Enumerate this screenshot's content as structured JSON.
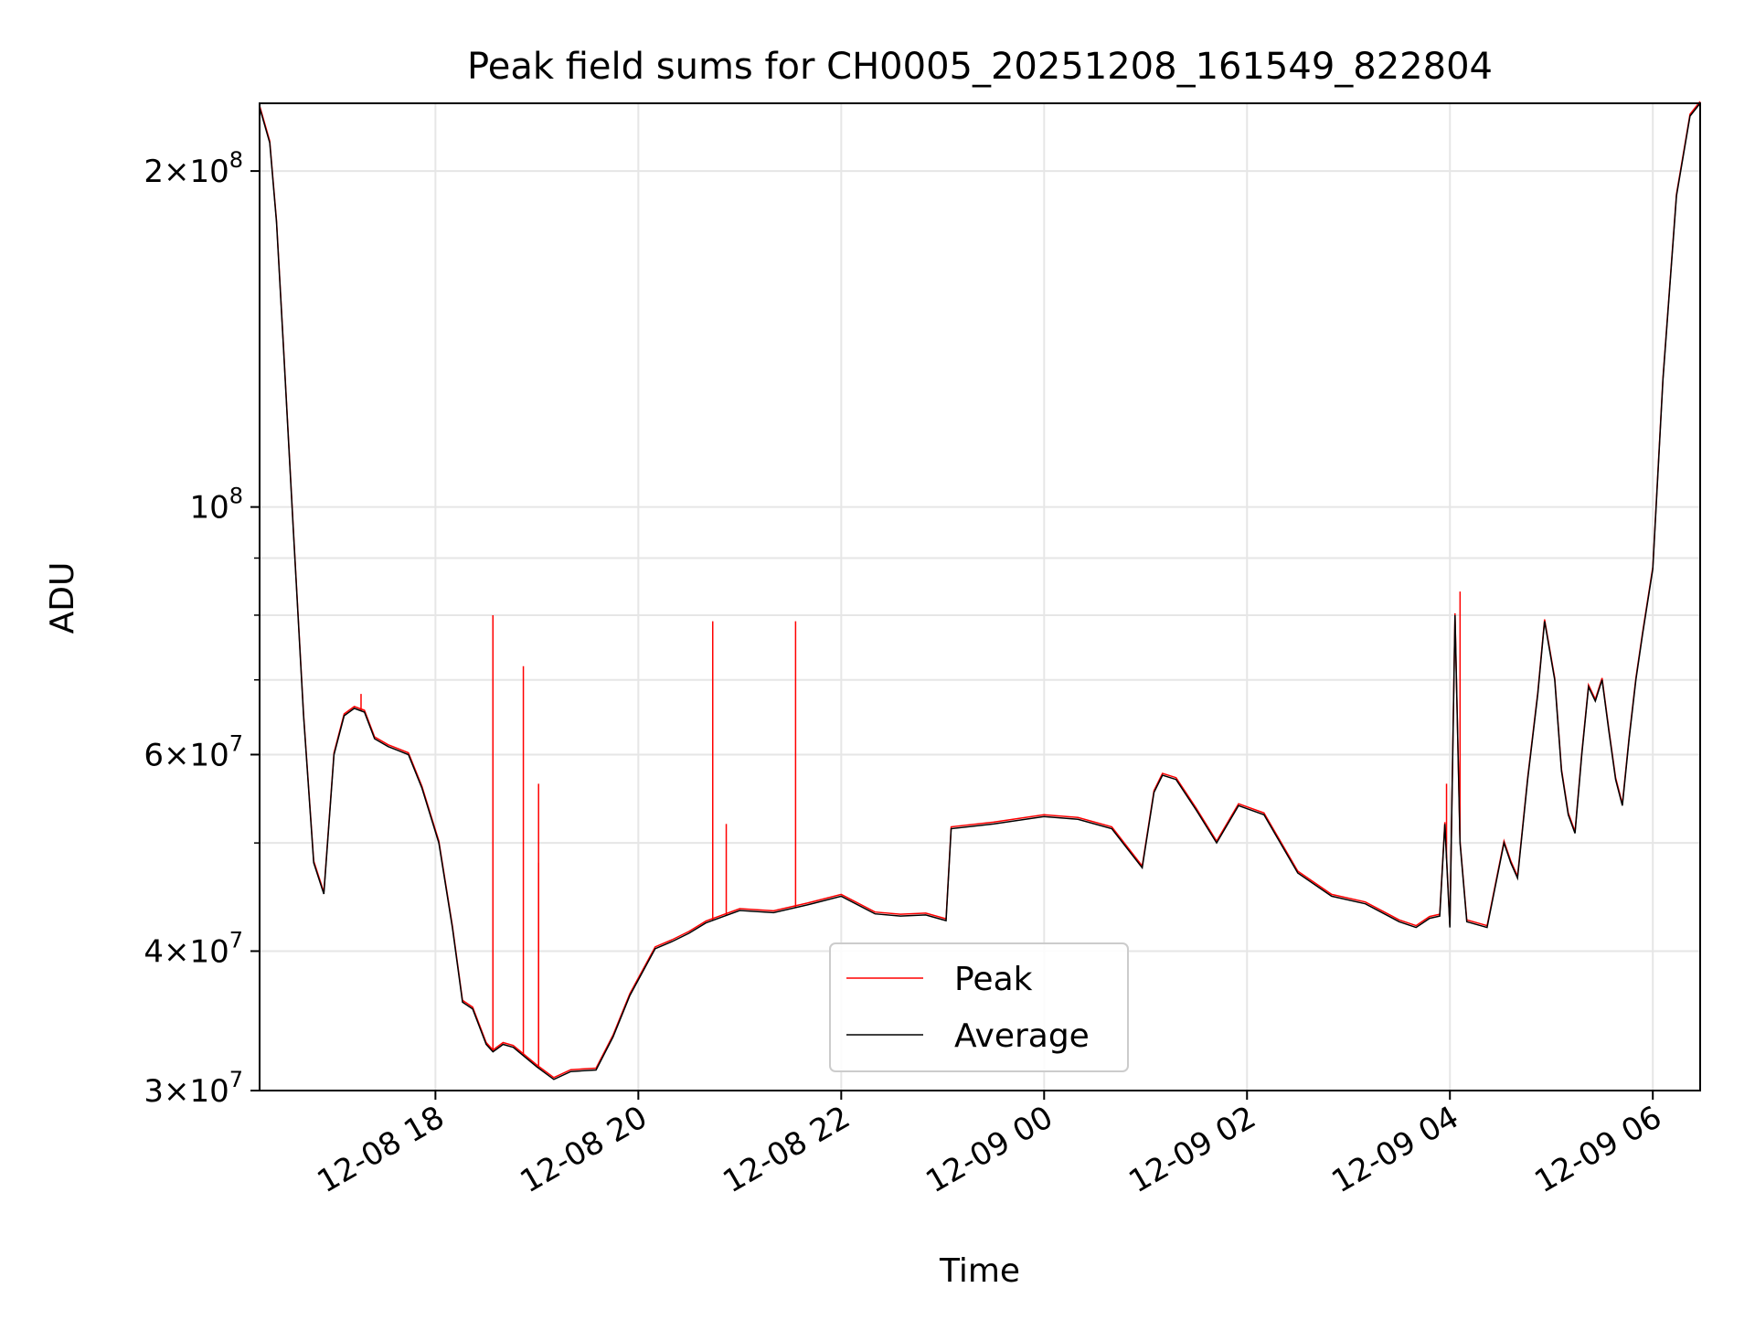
{
  "chart_data": {
    "type": "line",
    "title": "Peak field sums for CH0005_20251208_161549_822804",
    "xlabel": "Time",
    "ylabel": "ADU",
    "yscale": "log",
    "ylim": [
      30000000,
      230000000
    ],
    "xlim": [
      "2025-12-08 16:16",
      "2025-12-09 06:28"
    ],
    "grid": true,
    "legend_position": "bottom-center",
    "x_ticks": [
      {
        "value": "2025-12-08 18:00",
        "label": "12-08 18"
      },
      {
        "value": "2025-12-08 20:00",
        "label": "12-08 20"
      },
      {
        "value": "2025-12-08 22:00",
        "label": "12-08 22"
      },
      {
        "value": "2025-12-09 00:00",
        "label": "12-09 00"
      },
      {
        "value": "2025-12-09 02:00",
        "label": "12-09 02"
      },
      {
        "value": "2025-12-09 04:00",
        "label": "12-09 04"
      },
      {
        "value": "2025-12-09 06:00",
        "label": "12-09 06"
      }
    ],
    "y_major_ticks": [
      {
        "value": 30000000,
        "label_mantissa": "3",
        "label_exp": "7"
      },
      {
        "value": 40000000,
        "label_mantissa": "4",
        "label_exp": "7"
      },
      {
        "value": 60000000,
        "label_mantissa": "6",
        "label_exp": "7"
      },
      {
        "value": 100000000,
        "label_mantissa": "",
        "label_exp": "8"
      },
      {
        "value": 200000000,
        "label_mantissa": "2",
        "label_exp": "8"
      }
    ],
    "y_minor_ticks": [
      50000000,
      70000000,
      80000000,
      90000000
    ],
    "series": [
      {
        "name": "Average",
        "color": "#000000",
        "x": [
          "2025-12-08 16:16",
          "2025-12-08 16:22",
          "2025-12-08 16:26",
          "2025-12-08 16:30",
          "2025-12-08 16:36",
          "2025-12-08 16:42",
          "2025-12-08 16:48",
          "2025-12-08 16:54",
          "2025-12-08 17:00",
          "2025-12-08 17:06",
          "2025-12-08 17:12",
          "2025-12-08 17:18",
          "2025-12-08 17:24",
          "2025-12-08 17:32",
          "2025-12-08 17:38",
          "2025-12-08 17:44",
          "2025-12-08 17:52",
          "2025-12-08 18:02",
          "2025-12-08 18:10",
          "2025-12-08 18:16",
          "2025-12-08 18:22",
          "2025-12-08 18:30",
          "2025-12-08 18:34",
          "2025-12-08 18:40",
          "2025-12-08 18:46",
          "2025-12-08 19:00",
          "2025-12-08 19:10",
          "2025-12-08 19:20",
          "2025-12-08 19:35",
          "2025-12-08 19:45",
          "2025-12-08 19:55",
          "2025-12-08 20:10",
          "2025-12-08 20:20",
          "2025-12-08 20:30",
          "2025-12-08 20:40",
          "2025-12-08 21:00",
          "2025-12-08 21:20",
          "2025-12-08 21:40",
          "2025-12-08 22:00",
          "2025-12-08 22:20",
          "2025-12-08 22:35",
          "2025-12-08 22:50",
          "2025-12-08 23:02",
          "2025-12-08 23:05",
          "2025-12-08 23:30",
          "2025-12-09 00:00",
          "2025-12-09 00:20",
          "2025-12-09 00:40",
          "2025-12-09 00:58",
          "2025-12-09 01:05",
          "2025-12-09 01:10",
          "2025-12-09 01:18",
          "2025-12-09 01:30",
          "2025-12-09 01:42",
          "2025-12-09 01:55",
          "2025-12-09 02:10",
          "2025-12-09 02:30",
          "2025-12-09 02:50",
          "2025-12-09 03:10",
          "2025-12-09 03:30",
          "2025-12-09 03:40",
          "2025-12-09 03:48",
          "2025-12-09 03:54",
          "2025-12-09 03:57",
          "2025-12-09 04:00",
          "2025-12-09 04:03",
          "2025-12-09 04:06",
          "2025-12-09 04:10",
          "2025-12-09 04:22",
          "2025-12-09 04:32",
          "2025-12-09 04:36",
          "2025-12-09 04:40",
          "2025-12-09 04:46",
          "2025-12-09 04:52",
          "2025-12-09 04:56",
          "2025-12-09 05:02",
          "2025-12-09 05:06",
          "2025-12-09 05:10",
          "2025-12-09 05:14",
          "2025-12-09 05:18",
          "2025-12-09 05:22",
          "2025-12-09 05:26",
          "2025-12-09 05:30",
          "2025-12-09 05:34",
          "2025-12-09 05:38",
          "2025-12-09 05:42",
          "2025-12-09 05:46",
          "2025-12-09 05:50",
          "2025-12-09 05:54",
          "2025-12-09 06:00",
          "2025-12-09 06:06",
          "2025-12-09 06:14",
          "2025-12-09 06:22",
          "2025-12-09 06:28"
        ],
        "values": [
          228000000,
          212000000,
          180000000,
          140000000,
          95000000,
          65000000,
          48000000,
          45000000,
          60000000,
          65000000,
          66000000,
          65500000,
          62000000,
          61000000,
          60500000,
          60000000,
          56000000,
          50000000,
          42000000,
          36000000,
          35500000,
          33000000,
          32500000,
          33000000,
          32800000,
          31500000,
          30700000,
          31200000,
          31300000,
          33500000,
          36500000,
          40200000,
          40800000,
          41500000,
          42400000,
          43500000,
          43300000,
          44000000,
          44800000,
          43200000,
          43000000,
          43100000,
          42600000,
          51500000,
          52000000,
          52800000,
          52500000,
          51500000,
          47500000,
          55500000,
          57500000,
          57000000,
          53500000,
          50000000,
          54000000,
          53000000,
          47000000,
          44800000,
          44100000,
          42500000,
          42000000,
          42800000,
          43000000,
          52000000,
          42000000,
          80000000,
          50000000,
          42500000,
          42000000,
          50000000,
          48000000,
          46500000,
          57000000,
          68000000,
          79000000,
          70000000,
          58000000,
          53000000,
          51000000,
          60000000,
          69000000,
          67000000,
          70000000,
          63000000,
          57000000,
          54000000,
          62000000,
          70000000,
          77000000,
          88000000,
          130000000,
          190000000,
          224000000,
          230000000
        ]
      },
      {
        "name": "Peak",
        "color": "#ff0000",
        "spikes": [
          {
            "x": "2025-12-08 18:34",
            "value": 80000000
          },
          {
            "x": "2025-12-08 18:52",
            "value": 72000000
          },
          {
            "x": "2025-12-08 19:01",
            "value": 56500000
          },
          {
            "x": "2025-12-08 19:01",
            "value": 48000000
          },
          {
            "x": "2025-12-08 20:44",
            "value": 79000000
          },
          {
            "x": "2025-12-08 20:52",
            "value": 52000000
          },
          {
            "x": "2025-12-08 21:33",
            "value": 79000000
          },
          {
            "x": "2025-12-08 17:16",
            "value": 68000000
          },
          {
            "x": "2025-12-09 04:06",
            "value": 84000000
          },
          {
            "x": "2025-12-09 03:58",
            "value": 56500000
          }
        ]
      }
    ]
  }
}
